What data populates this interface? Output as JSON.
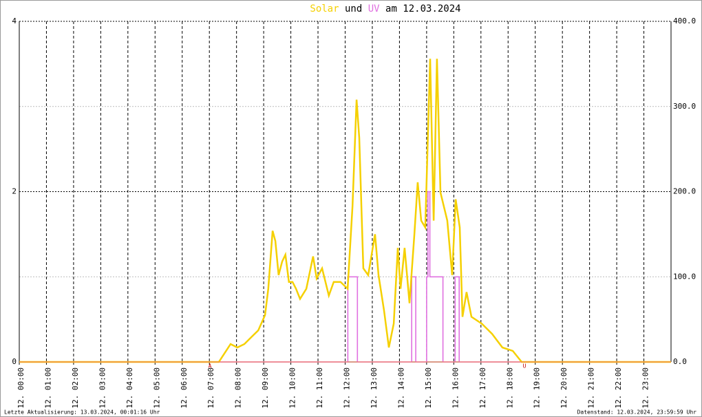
{
  "chart_data": {
    "type": "line",
    "title_parts": [
      {
        "text": "Solar",
        "color": "#f5d000"
      },
      {
        "text": "und",
        "color": "#000000"
      },
      {
        "text": "UV",
        "color": "#e070e0"
      },
      {
        "text": "am 12.03.2024",
        "color": "#000000"
      }
    ],
    "xlim": [
      0,
      24
    ],
    "xticks": [
      {
        "value": 0,
        "label": "12. 00:00"
      },
      {
        "value": 1,
        "label": "12. 01:00"
      },
      {
        "value": 2,
        "label": "12. 02:00"
      },
      {
        "value": 3,
        "label": "12. 03:00"
      },
      {
        "value": 4,
        "label": "12. 04:00"
      },
      {
        "value": 5,
        "label": "12. 05:00"
      },
      {
        "value": 6,
        "label": "12. 06:00"
      },
      {
        "value": 7,
        "label": "12. 07:00"
      },
      {
        "value": 8,
        "label": "12. 08:00"
      },
      {
        "value": 9,
        "label": "12. 09:00"
      },
      {
        "value": 10,
        "label": "12. 10:00"
      },
      {
        "value": 11,
        "label": "12. 11:00"
      },
      {
        "value": 12,
        "label": "12. 12:00"
      },
      {
        "value": 13,
        "label": "12. 13:00"
      },
      {
        "value": 14,
        "label": "12. 14:00"
      },
      {
        "value": 15,
        "label": "12. 15:00"
      },
      {
        "value": 16,
        "label": "12. 16:00"
      },
      {
        "value": 17,
        "label": "12. 17:00"
      },
      {
        "value": 18,
        "label": "12. 18:00"
      },
      {
        "value": 19,
        "label": "12. 19:00"
      },
      {
        "value": 20,
        "label": "12. 20:00"
      },
      {
        "value": 21,
        "label": "12. 21:00"
      },
      {
        "value": 22,
        "label": "12. 22:00"
      },
      {
        "value": 23,
        "label": "12. 23:00"
      }
    ],
    "ylim": [
      0,
      4
    ],
    "yticks": [
      0,
      2,
      4
    ],
    "y2lim": [
      0,
      400
    ],
    "y2ticks": [
      {
        "value": 0,
        "label": "0.0"
      },
      {
        "value": 100,
        "label": "100.0"
      },
      {
        "value": 200,
        "label": "200.0"
      },
      {
        "value": 300,
        "label": "300.0"
      },
      {
        "value": 400,
        "label": "400.0"
      }
    ],
    "grid": true,
    "series": [
      {
        "name": "Solar",
        "color": "#f5d000",
        "axis": "y2",
        "x": [
          0,
          7.35,
          7.78,
          8.03,
          8.29,
          8.54,
          8.8,
          9.05,
          9.17,
          9.33,
          9.43,
          9.55,
          9.68,
          9.8,
          9.93,
          10.06,
          10.19,
          10.34,
          10.57,
          10.82,
          10.95,
          11.15,
          11.4,
          11.58,
          11.83,
          12.09,
          12.27,
          12.42,
          12.52,
          12.67,
          12.85,
          13.1,
          13.23,
          13.43,
          13.61,
          13.79,
          13.94,
          14.04,
          14.19,
          14.37,
          14.55,
          14.67,
          14.8,
          14.95,
          15.13,
          15.26,
          15.38,
          15.51,
          15.76,
          15.94,
          16.07,
          16.22,
          16.32,
          16.47,
          16.65,
          17.03,
          17.41,
          17.79,
          18.17,
          18.5,
          24
        ],
        "values": [
          0,
          0,
          21,
          17,
          21,
          29,
          37,
          55,
          86,
          154,
          142,
          102,
          118,
          126,
          94,
          94,
          86,
          74,
          86,
          124,
          98,
          110,
          78,
          94,
          94,
          86,
          183,
          308,
          263,
          110,
          102,
          150,
          102,
          61,
          17,
          45,
          134,
          86,
          134,
          69,
          150,
          211,
          166,
          158,
          356,
          166,
          356,
          199,
          166,
          102,
          191,
          158,
          53,
          82,
          53,
          45,
          33,
          17,
          13,
          0,
          0
        ]
      },
      {
        "name": "UV",
        "color": "#e070e0",
        "axis": "y",
        "x": [
          0,
          12.1,
          12.1,
          12.45,
          12.45,
          14.45,
          14.45,
          14.6,
          14.6,
          15.0,
          15.0,
          15.05,
          15.05,
          15.12,
          15.12,
          15.6,
          15.6,
          16.05,
          16.05,
          16.2,
          16.2,
          24
        ],
        "values": [
          0,
          0,
          1,
          1,
          0,
          0,
          1,
          1,
          0,
          0,
          1,
          1,
          2,
          2,
          1,
          1,
          0,
          0,
          1,
          1,
          0,
          0
        ]
      }
    ],
    "annotations": [
      "A",
      "U"
    ],
    "footer_left": "Letzte Aktualisierung: 13.03.2024, 00:01:16 Uhr",
    "footer_right": "Datenstand: 12.03.2024, 23:59:59 Uhr"
  }
}
